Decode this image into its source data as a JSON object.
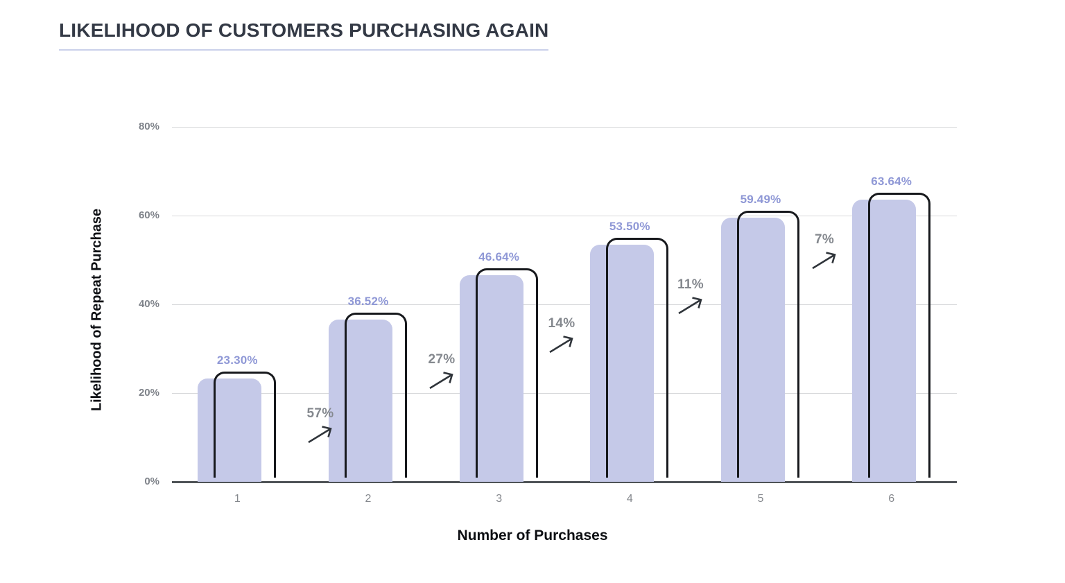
{
  "header": {
    "title": "LIKELIHOOD OF CUSTOMERS PURCHASING AGAIN"
  },
  "chart_data": {
    "type": "bar",
    "title": "LIKELIHOOD OF CUSTOMERS PURCHASING AGAIN",
    "xlabel": "Number of Purchases",
    "ylabel": "Likelihood of Repeat Purchase",
    "categories": [
      "1",
      "2",
      "3",
      "4",
      "5",
      "6"
    ],
    "values": [
      23.3,
      36.52,
      46.64,
      53.5,
      59.49,
      63.64
    ],
    "value_labels": [
      "23.30%",
      "36.52%",
      "46.64%",
      "53.50%",
      "59.49%",
      "63.64%"
    ],
    "growth_annotations": [
      "57%",
      "27%",
      "14%",
      "11%",
      "7%"
    ],
    "growth_arrow_icon": "trend-up-arrow-icon",
    "y_ticks": [
      "0%",
      "20%",
      "40%",
      "60%",
      "80%"
    ],
    "ylim": [
      0,
      80
    ],
    "grid": true,
    "legend": "none",
    "colors": {
      "bar_fill": "#c5c9e8",
      "bar_outline": "#17191d",
      "value_label": "#8f98d6",
      "annotation_text": "#84888e",
      "arrow": "#2f343a",
      "axis_tick_text": "#7f838a",
      "axis_title_text": "#0d0f13",
      "gridline": "#d7d8da",
      "axis_line": "#4f5357",
      "title_text": "#333945",
      "title_underline": "#cad0ea"
    }
  }
}
